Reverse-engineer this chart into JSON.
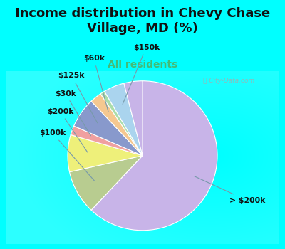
{
  "title": "Income distribution in Chevy Chase\nVillage, MD (%)",
  "subtitle": "All residents",
  "title_color": "#111111",
  "subtitle_color": "#44bb77",
  "bg_color": "#00ffff",
  "slices": [
    {
      "label": "> $200k",
      "value": 62.0,
      "color": "#c8b4e8"
    },
    {
      "label": "$100k",
      "value": 9.5,
      "color": "#b8cc90"
    },
    {
      "label": "$200k",
      "value": 8.0,
      "color": "#eef07a"
    },
    {
      "label": "$30k",
      "value": 2.0,
      "color": "#f0a0a0"
    },
    {
      "label": "$125k",
      "value": 6.5,
      "color": "#8899cc"
    },
    {
      "label": "$60k",
      "value": 2.5,
      "color": "#f5c890"
    },
    {
      "label": "",
      "value": 1.0,
      "color": "#aaddaa"
    },
    {
      "label": "$150k",
      "value": 4.5,
      "color": "#aad4ee"
    },
    {
      "label": "",
      "value": 4.0,
      "color": "#c8b4e8"
    }
  ],
  "startangle": 90,
  "title_fontsize": 13,
  "subtitle_fontsize": 10,
  "label_fontsize": 7.8
}
